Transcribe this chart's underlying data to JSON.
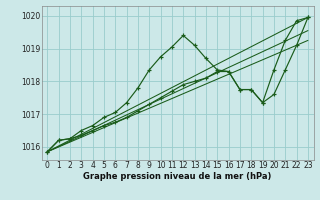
{
  "title": "Graphe pression niveau de la mer (hPa)",
  "background_color": "#cce8e8",
  "grid_color": "#99cccc",
  "line_color": "#1a5c1a",
  "xlim": [
    -0.5,
    23.5
  ],
  "ylim": [
    1015.6,
    1020.3
  ],
  "yticks": [
    1016,
    1017,
    1018,
    1019,
    1020
  ],
  "xticks": [
    0,
    1,
    2,
    3,
    4,
    5,
    6,
    7,
    8,
    9,
    10,
    11,
    12,
    13,
    14,
    15,
    16,
    17,
    18,
    19,
    20,
    21,
    22,
    23
  ],
  "series_wavy": [
    {
      "x": [
        0,
        1,
        2,
        3,
        4,
        5,
        6,
        7,
        8,
        9,
        10,
        11,
        12,
        13,
        14,
        15,
        16,
        17,
        18,
        19,
        20,
        21,
        22,
        23
      ],
      "y": [
        1015.85,
        1016.2,
        1016.25,
        1016.5,
        1016.65,
        1016.9,
        1017.05,
        1017.35,
        1017.8,
        1018.35,
        1018.75,
        1019.05,
        1019.4,
        1019.1,
        1018.7,
        1018.35,
        1018.3,
        1017.75,
        1017.75,
        1017.35,
        1018.35,
        1019.25,
        1019.85,
        1019.95
      ]
    },
    {
      "x": [
        0,
        1,
        2,
        3,
        4,
        5,
        6,
        7,
        8,
        9,
        10,
        11,
        12,
        13,
        14,
        15,
        16,
        17,
        18,
        19,
        20,
        21,
        22,
        23
      ],
      "y": [
        1015.85,
        1016.2,
        1016.25,
        1016.35,
        1016.5,
        1016.65,
        1016.75,
        1016.9,
        1017.1,
        1017.3,
        1017.5,
        1017.7,
        1017.9,
        1018.0,
        1018.1,
        1018.3,
        1018.3,
        1017.75,
        1017.75,
        1017.35,
        1017.6,
        1018.35,
        1019.1,
        1019.95
      ]
    }
  ],
  "series_straight": [
    {
      "x": [
        0,
        23
      ],
      "y": [
        1015.85,
        1019.95
      ]
    },
    {
      "x": [
        0,
        23
      ],
      "y": [
        1015.85,
        1019.55
      ]
    },
    {
      "x": [
        0,
        23
      ],
      "y": [
        1015.85,
        1019.25
      ]
    }
  ]
}
